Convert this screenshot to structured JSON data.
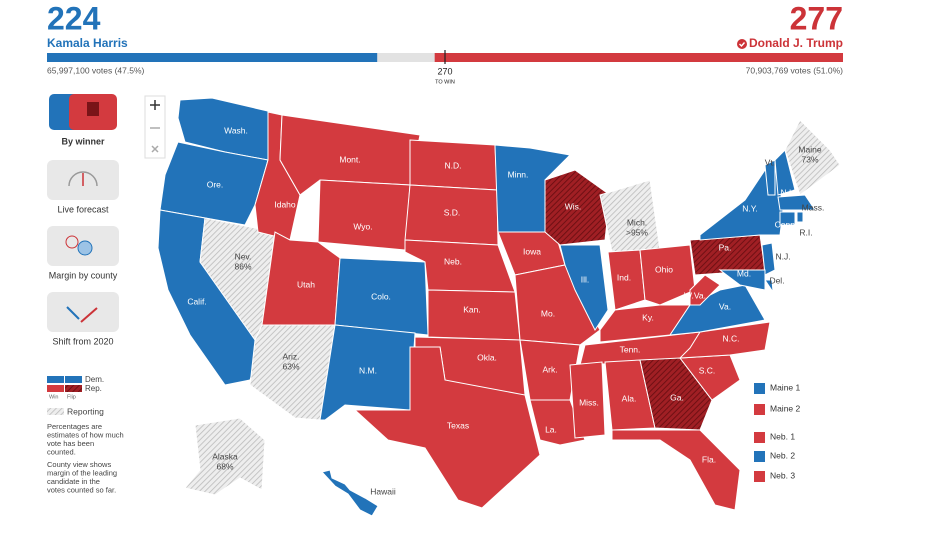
{
  "header": {
    "harris": {
      "electoral_votes": 224,
      "name": "Kamala Harris",
      "votes": "65,997,100 votes (47.5%)"
    },
    "trump": {
      "electoral_votes": 277,
      "name": "Donald J. Trump",
      "votes": "70,903,769 votes (51.0%)"
    },
    "threshold": {
      "value": 270,
      "label": "TO WIN"
    }
  },
  "sidebar": {
    "views": [
      "By winner",
      "Live forecast",
      "Margin by county",
      "Shift from 2020"
    ],
    "legend": {
      "dem": "Dem.",
      "rep": "Rep.",
      "win": "Win",
      "flip": "Flip",
      "reporting": "Reporting"
    },
    "notes": [
      "Percentages are estimates of how much vote has been counted.",
      "County view shows margin of the leading candidate in the votes counted so far."
    ]
  },
  "map": {
    "states": [
      {
        "name": "Wash.",
        "party": "dem"
      },
      {
        "name": "Ore.",
        "party": "dem"
      },
      {
        "name": "Calif.",
        "party": "dem"
      },
      {
        "name": "Nev.",
        "party": "reporting",
        "pct": "86%"
      },
      {
        "name": "Idaho",
        "party": "rep"
      },
      {
        "name": "Mont.",
        "party": "rep"
      },
      {
        "name": "Wyo.",
        "party": "rep"
      },
      {
        "name": "Utah",
        "party": "rep"
      },
      {
        "name": "Colo.",
        "party": "dem"
      },
      {
        "name": "Ariz.",
        "party": "reporting",
        "pct": "63%"
      },
      {
        "name": "N.M.",
        "party": "dem"
      },
      {
        "name": "N.D.",
        "party": "rep"
      },
      {
        "name": "S.D.",
        "party": "rep"
      },
      {
        "name": "Neb.",
        "party": "rep"
      },
      {
        "name": "Kan.",
        "party": "rep"
      },
      {
        "name": "Okla.",
        "party": "rep"
      },
      {
        "name": "Texas",
        "party": "rep"
      },
      {
        "name": "Minn.",
        "party": "dem"
      },
      {
        "name": "Iowa",
        "party": "rep"
      },
      {
        "name": "Mo.",
        "party": "rep"
      },
      {
        "name": "Ark.",
        "party": "rep"
      },
      {
        "name": "La.",
        "party": "rep"
      },
      {
        "name": "Wis.",
        "party": "flip"
      },
      {
        "name": "Ill.",
        "party": "dem"
      },
      {
        "name": "Mich.",
        "party": "reporting",
        "pct": ">95%"
      },
      {
        "name": "Ind.",
        "party": "rep"
      },
      {
        "name": "Ohio",
        "party": "rep"
      },
      {
        "name": "Ky.",
        "party": "rep"
      },
      {
        "name": "Tenn.",
        "party": "rep"
      },
      {
        "name": "Miss.",
        "party": "rep"
      },
      {
        "name": "Ala.",
        "party": "rep"
      },
      {
        "name": "Ga.",
        "party": "flip"
      },
      {
        "name": "Fla.",
        "party": "rep"
      },
      {
        "name": "S.C.",
        "party": "rep"
      },
      {
        "name": "N.C.",
        "party": "rep"
      },
      {
        "name": "Va.",
        "party": "dem"
      },
      {
        "name": "W.Va.",
        "party": "rep"
      },
      {
        "name": "Pa.",
        "party": "flip"
      },
      {
        "name": "N.Y.",
        "party": "dem"
      },
      {
        "name": "Vt.",
        "party": "dem"
      },
      {
        "name": "N.H.",
        "party": "dem"
      },
      {
        "name": "Maine",
        "party": "reporting",
        "pct": "73%"
      },
      {
        "name": "Mass.",
        "party": "dem"
      },
      {
        "name": "Conn.",
        "party": "dem"
      },
      {
        "name": "R.I.",
        "party": "dem"
      },
      {
        "name": "N.J.",
        "party": "dem"
      },
      {
        "name": "Del.",
        "party": "dem"
      },
      {
        "name": "Md.",
        "party": "dem"
      },
      {
        "name": "Alaska",
        "party": "reporting",
        "pct": "68%"
      },
      {
        "name": "Hawaii",
        "party": "dem"
      }
    ],
    "districts": [
      {
        "name": "Maine 1",
        "party": "dem"
      },
      {
        "name": "Maine 2",
        "party": "rep"
      },
      {
        "name": "Neb. 1",
        "party": "rep"
      },
      {
        "name": "Neb. 2",
        "party": "dem"
      },
      {
        "name": "Neb. 3",
        "party": "rep"
      }
    ]
  }
}
